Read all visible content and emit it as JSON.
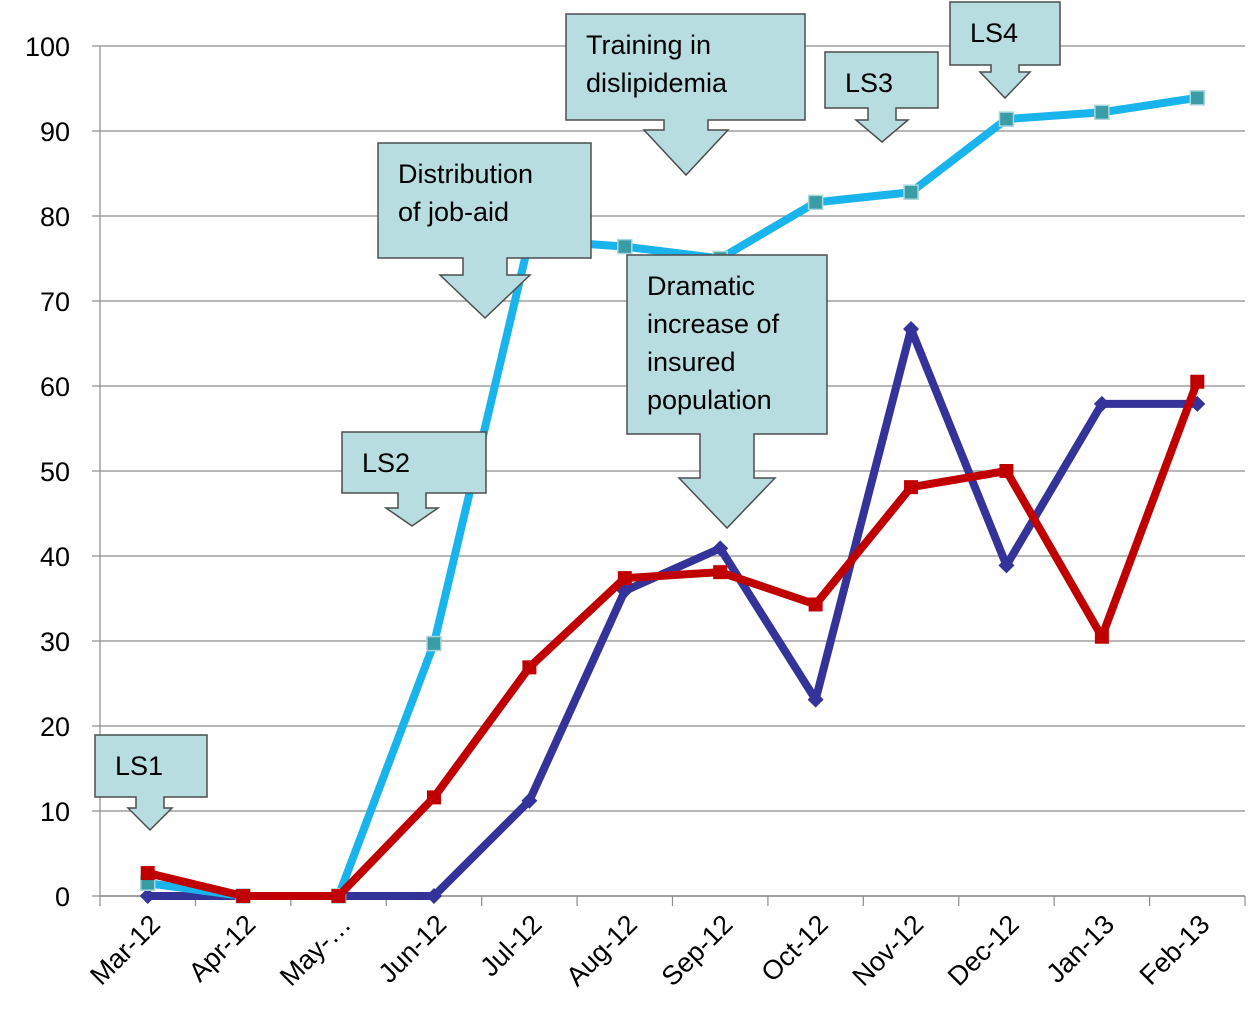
{
  "chart_data": {
    "type": "line",
    "categories": [
      "Mar-12",
      "Apr-12",
      "May-…",
      "Jun-12",
      "Jul-12",
      "Aug-12",
      "Sep-12",
      "Oct-12",
      "Nov-12",
      "Dec-12",
      "Jan-13",
      "Feb-13"
    ],
    "series": [
      {
        "color": "#333399",
        "marker": "diamond",
        "values": [
          0,
          0,
          0,
          0,
          11.2,
          35.9,
          40.9,
          23.1,
          66.7,
          38.9,
          57.9,
          57.9
        ]
      },
      {
        "color": "#1ab4ec",
        "marker": "square",
        "marker_color": "#3a9ca4",
        "values": [
          1.5,
          0,
          0,
          29.7,
          77.2,
          76.4,
          75,
          81.6,
          82.8,
          91.4,
          92.2,
          93.9
        ]
      },
      {
        "color": "#c00000",
        "marker": "square",
        "values": [
          2.7,
          0,
          0,
          11.6,
          26.9,
          37.4,
          38.1,
          34.3,
          48.1,
          50,
          30.5,
          60.5
        ]
      }
    ],
    "ylim": [
      0,
      100
    ],
    "yticks": [
      0,
      10,
      20,
      30,
      40,
      50,
      60,
      70,
      80,
      90,
      100
    ],
    "grid": true,
    "annotations": [
      {
        "lines": [
          "LS1"
        ]
      },
      {
        "lines": [
          "LS2"
        ]
      },
      {
        "lines": [
          "Distribution",
          "of job-aid"
        ]
      },
      {
        "lines": [
          "Training in",
          "dislipidemia"
        ]
      },
      {
        "lines": [
          "Dramatic",
          "increase of",
          "insured",
          "population"
        ]
      },
      {
        "lines": [
          "LS3"
        ]
      },
      {
        "lines": [
          "LS4"
        ]
      }
    ]
  }
}
